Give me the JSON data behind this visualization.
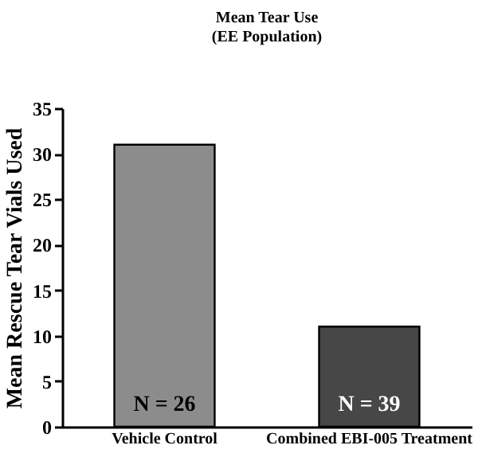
{
  "chart_data": {
    "type": "bar",
    "title": "Mean Tear Use",
    "subtitle": "(EE Population)",
    "ylabel": "Mean Rescue Tear Vials Used",
    "categories": [
      "Vehicle Control",
      "Combined EBI-005 Treatment"
    ],
    "values": [
      31,
      11
    ],
    "colors": [
      "#8c8c8c",
      "#474747"
    ],
    "ylim": [
      0,
      35
    ],
    "yticks": [
      0,
      5,
      10,
      15,
      20,
      25,
      30,
      35
    ],
    "grid": false,
    "annotations": [
      "N = 26",
      "N = 39"
    ]
  }
}
